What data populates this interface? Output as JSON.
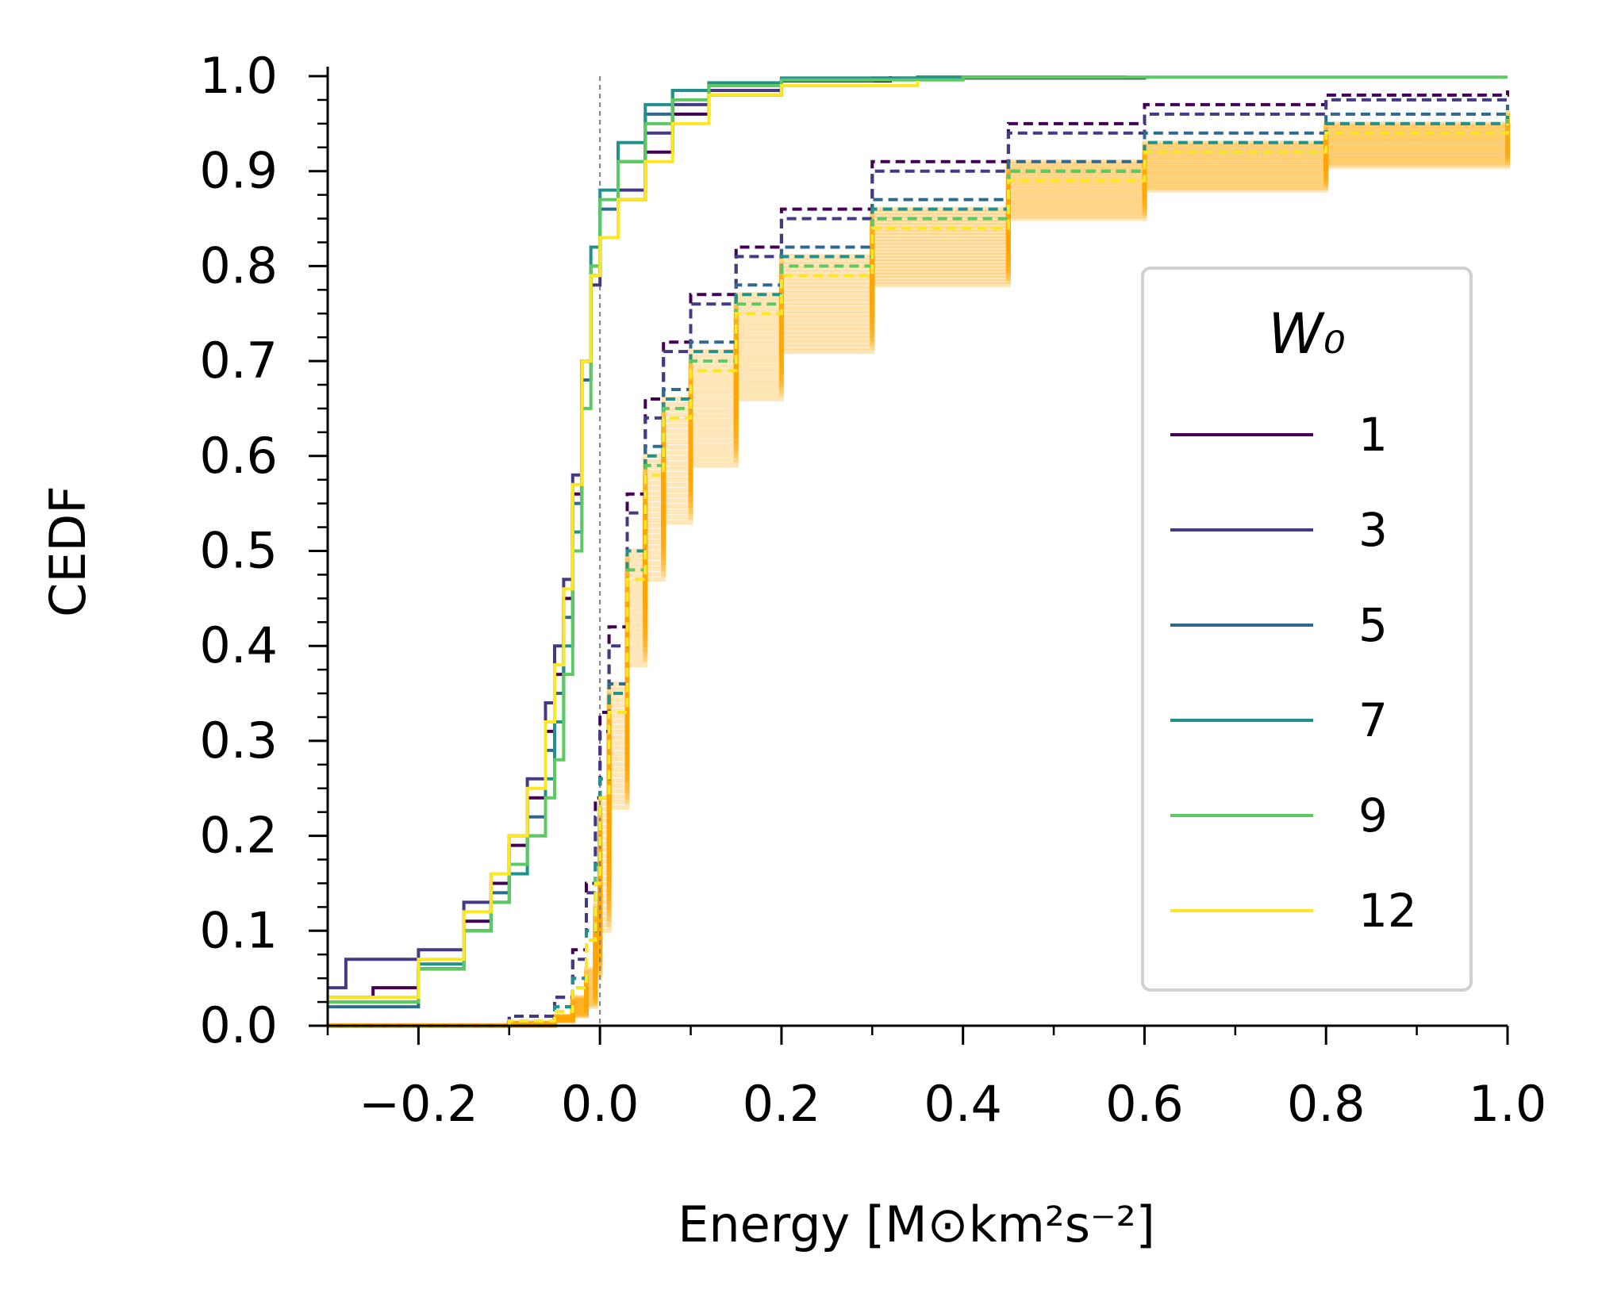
{
  "chart_data": {
    "type": "line",
    "xlabel": "Energy [M⊙km²s⁻²]",
    "ylabel": "CEDF",
    "xlim": [
      -0.3,
      1.0
    ],
    "ylim": [
      0.0,
      1.0
    ],
    "x_ticks": [
      "−0.2",
      "0.0",
      "0.2",
      "0.4",
      "0.6",
      "0.8",
      "1.0"
    ],
    "x_tick_values": [
      -0.2,
      0.0,
      0.2,
      0.4,
      0.6,
      0.8,
      1.0
    ],
    "y_ticks": [
      "0.0",
      "0.1",
      "0.2",
      "0.3",
      "0.4",
      "0.5",
      "0.6",
      "0.7",
      "0.8",
      "0.9",
      "1.0"
    ],
    "y_tick_values": [
      0.0,
      0.1,
      0.2,
      0.3,
      0.4,
      0.5,
      0.6,
      0.7,
      0.8,
      0.9,
      1.0
    ],
    "vline_x": 0.0,
    "legend": {
      "title": "W₀",
      "placement": "center-right",
      "entries": [
        {
          "label": "1",
          "color": "#440154"
        },
        {
          "label": "3",
          "color": "#443a83"
        },
        {
          "label": "5",
          "color": "#31688e"
        },
        {
          "label": "7",
          "color": "#21918c"
        },
        {
          "label": "9",
          "color": "#5ec962"
        },
        {
          "label": "12",
          "color": "#fde725"
        }
      ]
    },
    "band_color": "#ffa500",
    "series": [
      {
        "name": "1",
        "style": "solid",
        "color": "#440154",
        "x": [
          -0.3,
          -0.25,
          -0.2,
          -0.15,
          -0.12,
          -0.1,
          -0.08,
          -0.06,
          -0.05,
          -0.04,
          -0.03,
          -0.02,
          -0.01,
          0.0,
          0.02,
          0.05,
          0.08,
          0.12,
          0.2,
          0.32
        ],
        "y": [
          0.03,
          0.04,
          0.06,
          0.11,
          0.15,
          0.19,
          0.24,
          0.31,
          0.37,
          0.45,
          0.56,
          0.7,
          0.79,
          0.83,
          0.87,
          0.92,
          0.96,
          0.98,
          0.995,
          1.0
        ]
      },
      {
        "name": "3",
        "style": "solid",
        "color": "#443a83",
        "x": [
          -0.3,
          -0.28,
          -0.2,
          -0.15,
          -0.12,
          -0.1,
          -0.08,
          -0.06,
          -0.05,
          -0.04,
          -0.03,
          -0.02,
          -0.01,
          0.0,
          0.02,
          0.05,
          0.08,
          0.12,
          0.2,
          0.3,
          0.6
        ],
        "y": [
          0.04,
          0.07,
          0.08,
          0.13,
          0.16,
          0.2,
          0.26,
          0.34,
          0.4,
          0.47,
          0.58,
          0.7,
          0.78,
          0.83,
          0.88,
          0.94,
          0.97,
          0.985,
          0.995,
          0.998,
          1.0
        ]
      },
      {
        "name": "5",
        "style": "solid",
        "color": "#31688e",
        "x": [
          -0.3,
          -0.2,
          -0.15,
          -0.12,
          -0.1,
          -0.08,
          -0.06,
          -0.05,
          -0.04,
          -0.03,
          -0.02,
          -0.01,
          0.0,
          0.02,
          0.05,
          0.08,
          0.12,
          0.2,
          0.35,
          0.58
        ],
        "y": [
          0.02,
          0.06,
          0.1,
          0.14,
          0.17,
          0.22,
          0.29,
          0.35,
          0.43,
          0.55,
          0.68,
          0.8,
          0.86,
          0.91,
          0.96,
          0.985,
          0.99,
          0.997,
          0.999,
          1.0
        ]
      },
      {
        "name": "7",
        "style": "solid",
        "color": "#21918c",
        "x": [
          -0.3,
          -0.2,
          -0.15,
          -0.12,
          -0.1,
          -0.08,
          -0.06,
          -0.05,
          -0.04,
          -0.03,
          -0.02,
          -0.01,
          0.0,
          0.02,
          0.05,
          0.08,
          0.12,
          0.2,
          0.35,
          0.58
        ],
        "y": [
          0.025,
          0.065,
          0.1,
          0.13,
          0.16,
          0.2,
          0.26,
          0.32,
          0.4,
          0.52,
          0.7,
          0.82,
          0.88,
          0.93,
          0.97,
          0.985,
          0.993,
          0.998,
          0.999,
          1.0
        ]
      },
      {
        "name": "9",
        "style": "solid",
        "color": "#5ec962",
        "x": [
          -0.3,
          -0.2,
          -0.15,
          -0.12,
          -0.1,
          -0.08,
          -0.06,
          -0.05,
          -0.04,
          -0.03,
          -0.02,
          -0.01,
          0.0,
          0.02,
          0.05,
          0.08,
          0.12,
          0.2,
          0.4,
          1.0
        ],
        "y": [
          0.025,
          0.06,
          0.1,
          0.13,
          0.17,
          0.2,
          0.24,
          0.28,
          0.37,
          0.5,
          0.65,
          0.8,
          0.87,
          0.91,
          0.95,
          0.975,
          0.99,
          0.996,
          0.999,
          0.999
        ]
      },
      {
        "name": "12",
        "style": "solid",
        "color": "#fde725",
        "x": [
          -0.3,
          -0.2,
          -0.15,
          -0.12,
          -0.1,
          -0.08,
          -0.06,
          -0.05,
          -0.04,
          -0.03,
          -0.02,
          -0.01,
          0.0,
          0.02,
          0.05,
          0.08,
          0.12,
          0.2,
          0.35
        ],
        "y": [
          0.03,
          0.07,
          0.12,
          0.16,
          0.2,
          0.25,
          0.32,
          0.38,
          0.46,
          0.57,
          0.7,
          0.79,
          0.83,
          0.87,
          0.91,
          0.95,
          0.98,
          0.99,
          0.995
        ]
      },
      {
        "name": "1 (dashed)",
        "style": "dashed",
        "color": "#440154",
        "x": [
          -0.3,
          -0.1,
          -0.05,
          -0.03,
          -0.015,
          -0.005,
          0.0,
          0.01,
          0.03,
          0.05,
          0.07,
          0.1,
          0.15,
          0.2,
          0.3,
          0.45,
          0.6,
          0.8,
          1.0
        ],
        "y": [
          0.0,
          0.01,
          0.03,
          0.08,
          0.15,
          0.24,
          0.33,
          0.42,
          0.56,
          0.66,
          0.72,
          0.77,
          0.82,
          0.86,
          0.91,
          0.95,
          0.97,
          0.98,
          0.985
        ]
      },
      {
        "name": "3 (dashed)",
        "style": "dashed",
        "color": "#443a83",
        "x": [
          -0.3,
          -0.1,
          -0.05,
          -0.03,
          -0.015,
          -0.005,
          0.0,
          0.01,
          0.03,
          0.05,
          0.07,
          0.1,
          0.15,
          0.2,
          0.3,
          0.45,
          0.6,
          0.8,
          1.0
        ],
        "y": [
          0.0,
          0.01,
          0.03,
          0.07,
          0.14,
          0.22,
          0.31,
          0.4,
          0.54,
          0.64,
          0.71,
          0.76,
          0.81,
          0.85,
          0.9,
          0.94,
          0.96,
          0.975,
          0.98
        ]
      },
      {
        "name": "5 (dashed)",
        "style": "dashed",
        "color": "#31688e",
        "x": [
          -0.3,
          -0.1,
          -0.05,
          -0.03,
          -0.015,
          -0.005,
          0.0,
          0.01,
          0.03,
          0.05,
          0.07,
          0.1,
          0.15,
          0.2,
          0.3,
          0.45,
          0.6,
          0.8,
          1.0
        ],
        "y": [
          0.0,
          0.005,
          0.02,
          0.05,
          0.1,
          0.17,
          0.26,
          0.36,
          0.5,
          0.61,
          0.67,
          0.72,
          0.78,
          0.82,
          0.87,
          0.91,
          0.94,
          0.96,
          0.97
        ]
      },
      {
        "name": "7 (dashed)",
        "style": "dashed",
        "color": "#21918c",
        "x": [
          -0.3,
          -0.1,
          -0.05,
          -0.03,
          -0.015,
          -0.005,
          0.0,
          0.01,
          0.03,
          0.05,
          0.07,
          0.1,
          0.15,
          0.2,
          0.3,
          0.45,
          0.6,
          0.8,
          1.0
        ],
        "y": [
          0.0,
          0.005,
          0.02,
          0.05,
          0.1,
          0.17,
          0.26,
          0.35,
          0.5,
          0.6,
          0.66,
          0.71,
          0.77,
          0.81,
          0.86,
          0.9,
          0.93,
          0.95,
          0.96
        ]
      },
      {
        "name": "9 (dashed)",
        "style": "dashed",
        "color": "#5ec962",
        "x": [
          -0.3,
          -0.1,
          -0.05,
          -0.03,
          -0.015,
          -0.005,
          0.0,
          0.01,
          0.03,
          0.05,
          0.07,
          0.1,
          0.15,
          0.2,
          0.3,
          0.45,
          0.6,
          0.8,
          1.0
        ],
        "y": [
          0.0,
          0.005,
          0.015,
          0.04,
          0.09,
          0.16,
          0.24,
          0.33,
          0.48,
          0.59,
          0.65,
          0.7,
          0.76,
          0.8,
          0.85,
          0.9,
          0.92,
          0.94,
          0.955
        ]
      },
      {
        "name": "12 (dashed)",
        "style": "dashed",
        "color": "#fde725",
        "x": [
          -0.3,
          -0.1,
          -0.05,
          -0.03,
          -0.015,
          -0.005,
          0.0,
          0.01,
          0.03,
          0.05,
          0.07,
          0.1,
          0.15,
          0.2,
          0.3,
          0.45,
          0.6,
          0.8,
          1.0
        ],
        "y": [
          0.0,
          0.005,
          0.015,
          0.04,
          0.09,
          0.15,
          0.24,
          0.33,
          0.47,
          0.58,
          0.64,
          0.69,
          0.75,
          0.79,
          0.84,
          0.89,
          0.92,
          0.94,
          0.95
        ]
      }
    ],
    "band": {
      "x": [
        -0.3,
        -0.1,
        -0.05,
        -0.03,
        -0.015,
        -0.005,
        0.0,
        0.01,
        0.03,
        0.05,
        0.07,
        0.1,
        0.15,
        0.2,
        0.3,
        0.45,
        0.6,
        0.8,
        1.0
      ],
      "lower": [
        0.0,
        0.0,
        0.005,
        0.01,
        0.02,
        0.05,
        0.1,
        0.23,
        0.38,
        0.47,
        0.53,
        0.59,
        0.66,
        0.71,
        0.78,
        0.85,
        0.88,
        0.905,
        0.92
      ],
      "upper": [
        0.0,
        0.003,
        0.01,
        0.03,
        0.06,
        0.13,
        0.24,
        0.36,
        0.5,
        0.6,
        0.66,
        0.71,
        0.77,
        0.81,
        0.86,
        0.91,
        0.93,
        0.95,
        0.965
      ]
    }
  }
}
